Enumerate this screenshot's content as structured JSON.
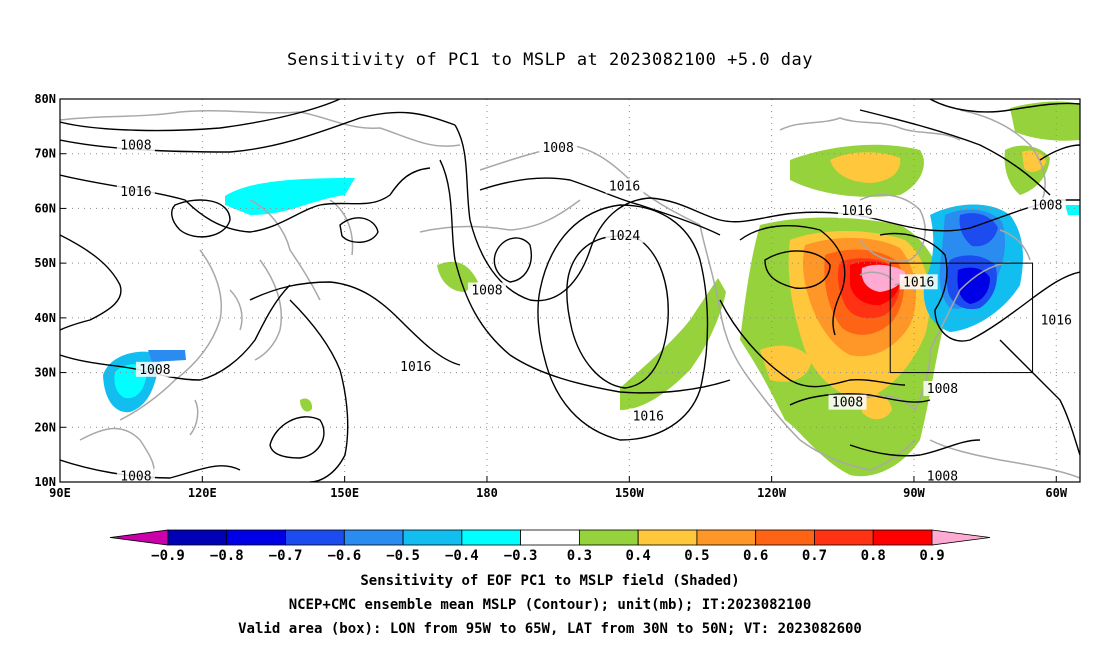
{
  "title": "Sensitivity of PC1 to MSLP at 2023082100 +5.0 day",
  "map": {
    "lon_range": [
      90,
      305
    ],
    "lat_range": [
      10,
      80
    ],
    "lon_ticks": [
      {
        "lon": 90,
        "label": "90E"
      },
      {
        "lon": 120,
        "label": "120E"
      },
      {
        "lon": 150,
        "label": "150E"
      },
      {
        "lon": 180,
        "label": "180"
      },
      {
        "lon": 210,
        "label": "150W"
      },
      {
        "lon": 240,
        "label": "120W"
      },
      {
        "lon": 270,
        "label": "90W"
      },
      {
        "lon": 300,
        "label": "60W"
      }
    ],
    "lat_ticks": [
      {
        "lat": 10,
        "label": "10N"
      },
      {
        "lat": 20,
        "label": "20N"
      },
      {
        "lat": 30,
        "label": "30N"
      },
      {
        "lat": 40,
        "label": "40N"
      },
      {
        "lat": 50,
        "label": "50N"
      },
      {
        "lat": 60,
        "label": "60N"
      },
      {
        "lat": 70,
        "label": "70N"
      },
      {
        "lat": 80,
        "label": "80N"
      }
    ],
    "grid": "dotted",
    "box": {
      "lon": [
        265,
        295
      ],
      "lat": [
        30,
        50
      ]
    },
    "contour_labels": [
      {
        "lon": 106,
        "lat": 71.5,
        "text": "1008"
      },
      {
        "lon": 106,
        "lat": 63,
        "text": "1016"
      },
      {
        "lon": 110,
        "lat": 30.5,
        "text": "1008"
      },
      {
        "lon": 106,
        "lat": 11,
        "text": "1008"
      },
      {
        "lon": 195,
        "lat": 71,
        "text": "1008"
      },
      {
        "lon": 209,
        "lat": 64,
        "text": "1016"
      },
      {
        "lon": 209,
        "lat": 55,
        "text": "1024"
      },
      {
        "lon": 180,
        "lat": 45,
        "text": "1008"
      },
      {
        "lon": 165,
        "lat": 31,
        "text": "1016"
      },
      {
        "lon": 214,
        "lat": 22,
        "text": "1016"
      },
      {
        "lon": 258,
        "lat": 59.5,
        "text": "1016"
      },
      {
        "lon": 298,
        "lat": 60.5,
        "text": "1008"
      },
      {
        "lon": 271,
        "lat": 46.5,
        "text": "1016"
      },
      {
        "lon": 300,
        "lat": 39.5,
        "text": "1016"
      },
      {
        "lon": 276,
        "lat": 27,
        "text": "1008"
      },
      {
        "lon": 256,
        "lat": 24.5,
        "text": "1008"
      },
      {
        "lon": 276,
        "lat": 11,
        "text": "1008"
      }
    ]
  },
  "colorbar": {
    "labels": [
      "-0.9",
      "-0.8",
      "-0.7",
      "-0.6",
      "-0.5",
      "-0.4",
      "-0.3",
      "0.3",
      "0.4",
      "0.5",
      "0.6",
      "0.7",
      "0.8",
      "0.9"
    ],
    "colors": [
      "#cc00aa",
      "#0000b4",
      "#0000e6",
      "#1c4cf0",
      "#2a8cf0",
      "#12bef0",
      "#00ffff",
      "#ffffff",
      "#96d23c",
      "#ffc83c",
      "#ff9628",
      "#ff6414",
      "#ff3214",
      "#ff0000",
      "#ffaad2"
    ]
  },
  "captions": [
    "Sensitivity of EOF PC1 to MSLP field (Shaded)",
    "NCEP+CMC ensemble mean MSLP (Contour); unit(mb); IT:2023082100",
    "Valid area (box): LON from 95W to 65W, LAT from 30N to 50N; VT: 2023082600"
  ]
}
